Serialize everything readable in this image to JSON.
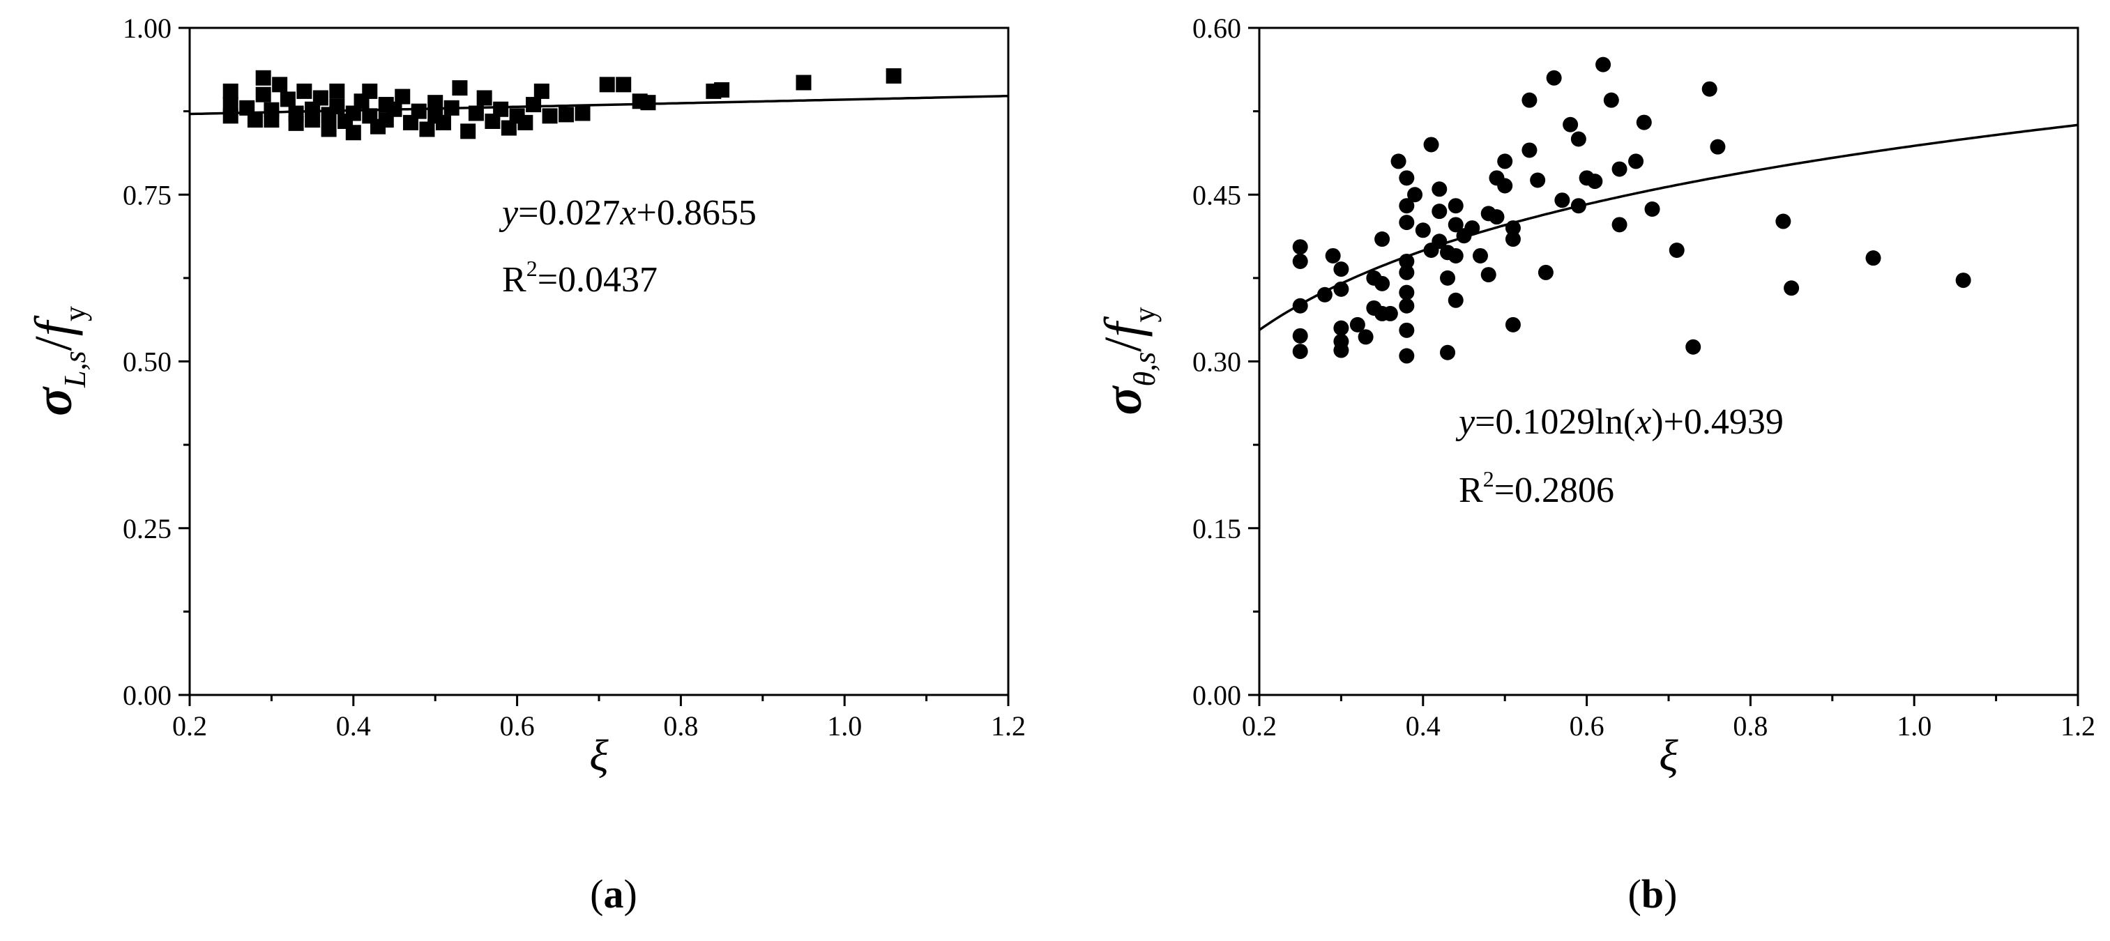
{
  "chart_data": [
    {
      "type": "scatter",
      "panel_label": "a",
      "marker": "square",
      "xlabel": "ξ",
      "ylabel": {
        "sigma": "σ",
        "sub": "L,s",
        "slash": "/",
        "f": "f",
        "fsub": "y"
      },
      "xlim": [
        0.2,
        1.2
      ],
      "ylim": [
        0.0,
        1.0
      ],
      "xticks": [
        "0.2",
        "0.4",
        "0.6",
        "0.8",
        "1.0",
        "1.2"
      ],
      "yticks": [
        "0.00",
        "0.25",
        "0.50",
        "0.75",
        "1.00"
      ],
      "fit": {
        "kind": "linear",
        "a": 0.027,
        "b": 0.8655
      },
      "equation": {
        "y": "y",
        "mid": "=0.027",
        "x": "x",
        "rest": "+0.8655"
      },
      "r2": {
        "R": "R",
        "sup": "2",
        "val": "=0.0437"
      },
      "points": [
        [
          0.25,
          0.905
        ],
        [
          0.25,
          0.885
        ],
        [
          0.25,
          0.868
        ],
        [
          0.27,
          0.88
        ],
        [
          0.28,
          0.862
        ],
        [
          0.29,
          0.925
        ],
        [
          0.29,
          0.9
        ],
        [
          0.3,
          0.877
        ],
        [
          0.3,
          0.862
        ],
        [
          0.31,
          0.915
        ],
        [
          0.32,
          0.893
        ],
        [
          0.33,
          0.872
        ],
        [
          0.33,
          0.857
        ],
        [
          0.34,
          0.905
        ],
        [
          0.35,
          0.878
        ],
        [
          0.35,
          0.862
        ],
        [
          0.36,
          0.895
        ],
        [
          0.37,
          0.87
        ],
        [
          0.37,
          0.848
        ],
        [
          0.38,
          0.905
        ],
        [
          0.38,
          0.882
        ],
        [
          0.39,
          0.86
        ],
        [
          0.4,
          0.843
        ],
        [
          0.4,
          0.872
        ],
        [
          0.41,
          0.89
        ],
        [
          0.42,
          0.868
        ],
        [
          0.42,
          0.905
        ],
        [
          0.43,
          0.852
        ],
        [
          0.44,
          0.885
        ],
        [
          0.44,
          0.862
        ],
        [
          0.45,
          0.878
        ],
        [
          0.46,
          0.897
        ],
        [
          0.47,
          0.858
        ],
        [
          0.48,
          0.875
        ],
        [
          0.49,
          0.848
        ],
        [
          0.5,
          0.868
        ],
        [
          0.5,
          0.888
        ],
        [
          0.51,
          0.858
        ],
        [
          0.52,
          0.88
        ],
        [
          0.53,
          0.91
        ],
        [
          0.54,
          0.845
        ],
        [
          0.55,
          0.872
        ],
        [
          0.56,
          0.895
        ],
        [
          0.57,
          0.86
        ],
        [
          0.58,
          0.878
        ],
        [
          0.59,
          0.85
        ],
        [
          0.6,
          0.868
        ],
        [
          0.61,
          0.858
        ],
        [
          0.62,
          0.885
        ],
        [
          0.63,
          0.905
        ],
        [
          0.64,
          0.868
        ],
        [
          0.66,
          0.87
        ],
        [
          0.68,
          0.872
        ],
        [
          0.71,
          0.915
        ],
        [
          0.73,
          0.915
        ],
        [
          0.75,
          0.89
        ],
        [
          0.76,
          0.888
        ],
        [
          0.84,
          0.905
        ],
        [
          0.85,
          0.907
        ],
        [
          0.95,
          0.918
        ],
        [
          1.06,
          0.928
        ]
      ]
    },
    {
      "type": "scatter",
      "panel_label": "b",
      "marker": "circle",
      "xlabel": "ξ",
      "ylabel": {
        "sigma": "σ",
        "sub": "θ,s",
        "slash": "/",
        "f": "f",
        "fsub": "y"
      },
      "xlim": [
        0.2,
        1.2
      ],
      "ylim": [
        0.0,
        0.6
      ],
      "xticks": [
        "0.2",
        "0.4",
        "0.6",
        "0.8",
        "1.0",
        "1.2"
      ],
      "yticks": [
        "0.00",
        "0.15",
        "0.30",
        "0.45",
        "0.60"
      ],
      "fit": {
        "kind": "log",
        "a": 0.1029,
        "b": 0.4939
      },
      "equation": {
        "y": "y",
        "rest": "=0.1029ln(",
        "x": "x",
        "rest2": ")+0.4939"
      },
      "r2": {
        "R": "R",
        "sup": "2",
        "val": "=0.2806"
      },
      "points": [
        [
          0.25,
          0.403
        ],
        [
          0.25,
          0.39
        ],
        [
          0.25,
          0.35
        ],
        [
          0.25,
          0.323
        ],
        [
          0.25,
          0.309
        ],
        [
          0.28,
          0.36
        ],
        [
          0.29,
          0.395
        ],
        [
          0.3,
          0.383
        ],
        [
          0.3,
          0.365
        ],
        [
          0.3,
          0.33
        ],
        [
          0.3,
          0.318
        ],
        [
          0.3,
          0.31
        ],
        [
          0.32,
          0.333
        ],
        [
          0.33,
          0.322
        ],
        [
          0.34,
          0.375
        ],
        [
          0.34,
          0.348
        ],
        [
          0.35,
          0.41
        ],
        [
          0.35,
          0.37
        ],
        [
          0.35,
          0.343
        ],
        [
          0.36,
          0.343
        ],
        [
          0.37,
          0.48
        ],
        [
          0.38,
          0.465
        ],
        [
          0.38,
          0.44
        ],
        [
          0.38,
          0.425
        ],
        [
          0.38,
          0.39
        ],
        [
          0.38,
          0.38
        ],
        [
          0.38,
          0.362
        ],
        [
          0.38,
          0.35
        ],
        [
          0.38,
          0.328
        ],
        [
          0.38,
          0.305
        ],
        [
          0.39,
          0.45
        ],
        [
          0.4,
          0.418
        ],
        [
          0.41,
          0.4
        ],
        [
          0.41,
          0.495
        ],
        [
          0.42,
          0.455
        ],
        [
          0.42,
          0.435
        ],
        [
          0.42,
          0.408
        ],
        [
          0.43,
          0.398
        ],
        [
          0.43,
          0.375
        ],
        [
          0.43,
          0.308
        ],
        [
          0.44,
          0.44
        ],
        [
          0.44,
          0.423
        ],
        [
          0.44,
          0.395
        ],
        [
          0.44,
          0.355
        ],
        [
          0.45,
          0.413
        ],
        [
          0.46,
          0.42
        ],
        [
          0.47,
          0.395
        ],
        [
          0.48,
          0.433
        ],
        [
          0.48,
          0.378
        ],
        [
          0.49,
          0.465
        ],
        [
          0.49,
          0.43
        ],
        [
          0.5,
          0.48
        ],
        [
          0.5,
          0.458
        ],
        [
          0.51,
          0.42
        ],
        [
          0.51,
          0.41
        ],
        [
          0.51,
          0.333
        ],
        [
          0.53,
          0.49
        ],
        [
          0.53,
          0.535
        ],
        [
          0.54,
          0.463
        ],
        [
          0.55,
          0.38
        ],
        [
          0.56,
          0.555
        ],
        [
          0.57,
          0.445
        ],
        [
          0.58,
          0.513
        ],
        [
          0.59,
          0.44
        ],
        [
          0.59,
          0.5
        ],
        [
          0.6,
          0.465
        ],
        [
          0.61,
          0.462
        ],
        [
          0.62,
          0.567
        ],
        [
          0.63,
          0.535
        ],
        [
          0.64,
          0.473
        ],
        [
          0.64,
          0.423
        ],
        [
          0.66,
          0.48
        ],
        [
          0.67,
          0.515
        ],
        [
          0.68,
          0.437
        ],
        [
          0.71,
          0.4
        ],
        [
          0.73,
          0.313
        ],
        [
          0.75,
          0.545
        ],
        [
          0.76,
          0.493
        ],
        [
          0.84,
          0.426
        ],
        [
          0.85,
          0.366
        ],
        [
          0.95,
          0.393
        ],
        [
          1.06,
          0.373
        ]
      ]
    }
  ]
}
